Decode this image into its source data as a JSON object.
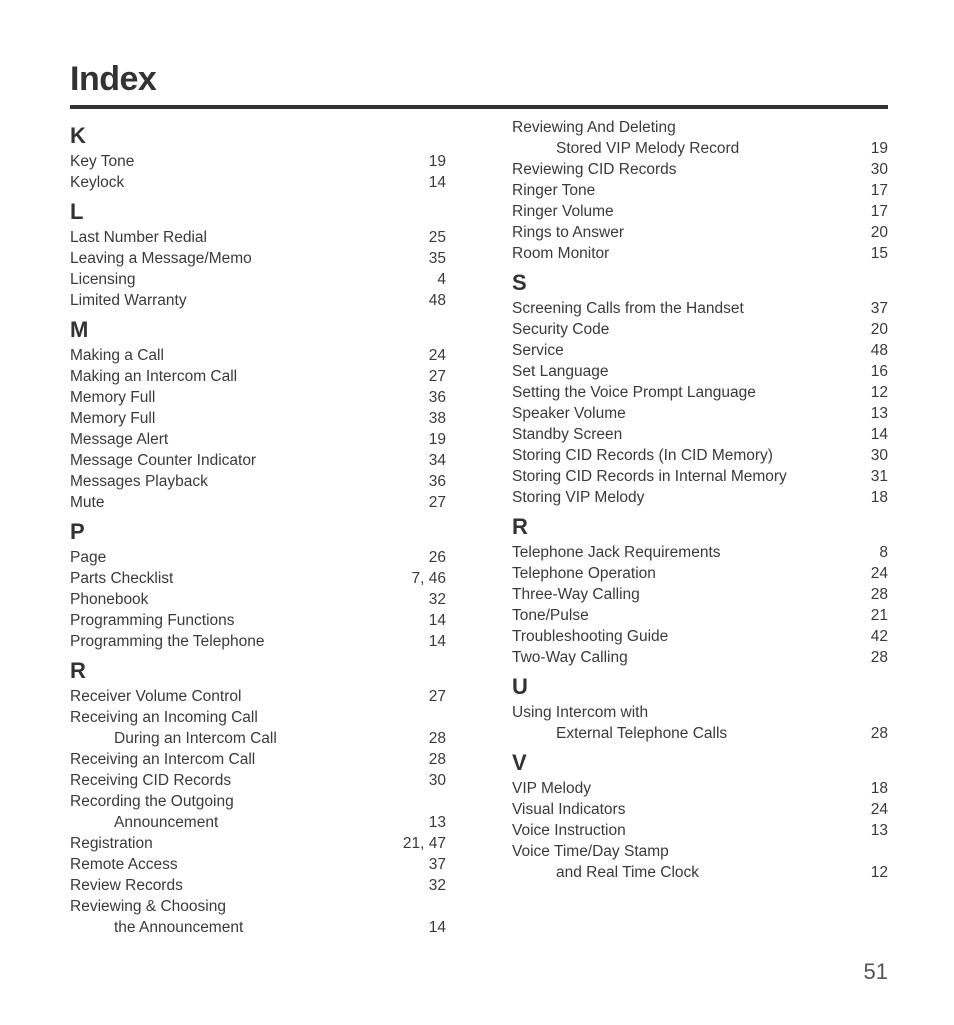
{
  "title": "Index",
  "page_number": "51",
  "fontsize_title": 34,
  "fontsize_section": 22,
  "fontsize_entry": 15.5,
  "text_color": "#3a3a3a",
  "rule_color": "#333333",
  "background_color": "#ffffff",
  "columns": [
    {
      "sections": [
        {
          "letter": "K",
          "entries": [
            {
              "label": "Key Tone",
              "page": "19"
            },
            {
              "label": "Keylock",
              "page": "14"
            }
          ]
        },
        {
          "letter": "L",
          "entries": [
            {
              "label": "Last Number Redial",
              "page": "25"
            },
            {
              "label": "Leaving a Message/Memo",
              "page": "35"
            },
            {
              "label": "Licensing",
              "page": "4"
            },
            {
              "label": "Limited Warranty",
              "page": "48"
            }
          ]
        },
        {
          "letter": "M",
          "entries": [
            {
              "label": "Making a Call",
              "page": "24"
            },
            {
              "label": "Making an Intercom Call",
              "page": "27"
            },
            {
              "label": "Memory Full",
              "page": "36"
            },
            {
              "label": "Memory Full",
              "page": "38"
            },
            {
              "label": "Message Alert",
              "page": "19"
            },
            {
              "label": "Message Counter Indicator",
              "page": "34"
            },
            {
              "label": "Messages Playback",
              "page": "36"
            },
            {
              "label": "Mute",
              "page": "27"
            }
          ]
        },
        {
          "letter": "P",
          "entries": [
            {
              "label": "Page",
              "page": "26"
            },
            {
              "label": "Parts Checklist",
              "page": "7, 46"
            },
            {
              "label": "Phonebook",
              "page": "32"
            },
            {
              "label": "Programming Functions",
              "page": "14"
            },
            {
              "label": "Programming the Telephone",
              "page": "14"
            }
          ]
        },
        {
          "letter": "R",
          "entries": [
            {
              "label": "Receiver Volume Control",
              "page": "27"
            },
            {
              "label": "Receiving an Incoming Call",
              "sub": "During an Intercom Call",
              "page": "28"
            },
            {
              "label": "Receiving an Intercom Call",
              "page": "28"
            },
            {
              "label": "Receiving CID Records",
              "page": "30"
            },
            {
              "label": "Recording the Outgoing",
              "sub": "Announcement",
              "page": "13"
            },
            {
              "label": "Registration",
              "page": "21, 47"
            },
            {
              "label": "Remote Access",
              "page": "37"
            },
            {
              "label": "Review Records",
              "page": "32"
            },
            {
              "label": "Reviewing & Choosing",
              "sub": "the Announcement",
              "page": "14"
            }
          ]
        }
      ]
    },
    {
      "sections": [
        {
          "letter": "",
          "entries": [
            {
              "label": "Reviewing And Deleting",
              "sub": "Stored VIP Melody Record",
              "page": "19"
            },
            {
              "label": "Reviewing CID Records",
              "page": "30"
            },
            {
              "label": "Ringer Tone",
              "page": "17"
            },
            {
              "label": "Ringer Volume",
              "page": "17"
            },
            {
              "label": "Rings to Answer",
              "page": "20"
            },
            {
              "label": "Room Monitor",
              "page": "15"
            }
          ]
        },
        {
          "letter": "S",
          "entries": [
            {
              "label": "Screening Calls from the Handset",
              "page": "37"
            },
            {
              "label": "Security Code",
              "page": "20"
            },
            {
              "label": "Service",
              "page": "48"
            },
            {
              "label": "Set Language",
              "page": "16"
            },
            {
              "label": "Setting the Voice Prompt Language",
              "page": "12"
            },
            {
              "label": "Speaker Volume",
              "page": "13"
            },
            {
              "label": "Standby Screen",
              "page": "14"
            },
            {
              "label": "Storing CID Records (In CID Memory)",
              "page": "30"
            },
            {
              "label": "Storing CID Records in Internal Memory",
              "page": "31"
            },
            {
              "label": "Storing VIP Melody",
              "page": "18"
            }
          ]
        },
        {
          "letter": "R",
          "entries": [
            {
              "label": "Telephone Jack Requirements",
              "page": "8"
            },
            {
              "label": "Telephone Operation",
              "page": "24"
            },
            {
              "label": "Three-Way Calling",
              "page": "28"
            },
            {
              "label": "Tone/Pulse",
              "page": "21"
            },
            {
              "label": "Troubleshooting Guide",
              "page": "42"
            },
            {
              "label": "Two-Way Calling",
              "page": "28"
            }
          ]
        },
        {
          "letter": "U",
          "entries": [
            {
              "label": "Using Intercom with",
              "sub": "External Telephone Calls",
              "page": "28"
            }
          ]
        },
        {
          "letter": "V",
          "entries": [
            {
              "label": "VIP Melody",
              "page": "18"
            },
            {
              "label": "Visual Indicators",
              "page": "24"
            },
            {
              "label": "Voice Instruction",
              "page": "13"
            },
            {
              "label": "Voice Time/Day Stamp",
              "sub": "and Real Time Clock",
              "page": "12"
            }
          ]
        }
      ]
    }
  ]
}
